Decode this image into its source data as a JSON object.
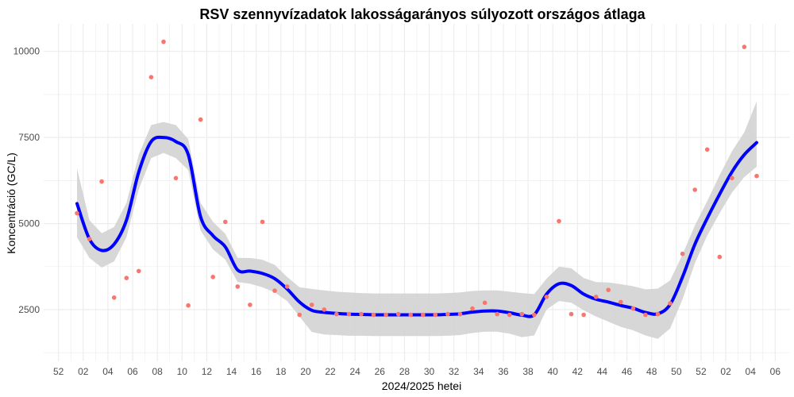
{
  "chart_data": {
    "type": "scatter",
    "title": "RSV szennyvízadatok lakosságarányos súlyozott országos átlaga",
    "xlabel": "2024/2025 hetei",
    "ylabel": "Koncentráció (GC/L)",
    "x_ticks": [
      "52",
      "02",
      "04",
      "06",
      "08",
      "10",
      "12",
      "14",
      "16",
      "18",
      "20",
      "22",
      "24",
      "26",
      "28",
      "30",
      "32",
      "34",
      "36",
      "38",
      "40",
      "42",
      "44",
      "46",
      "48",
      "50",
      "52",
      "02",
      "04",
      "06"
    ],
    "x_tick_positions": [
      -1,
      1,
      3,
      5,
      7,
      9,
      11,
      13,
      15,
      17,
      19,
      21,
      23,
      25,
      27,
      29,
      31,
      33,
      35,
      37,
      39,
      41,
      43,
      45,
      47,
      49,
      51,
      53,
      55,
      57
    ],
    "y_ticks": [
      2500,
      5000,
      7500,
      10000
    ],
    "y_tick_labels": [
      "2500",
      "5000",
      "7500",
      "10000"
    ],
    "xlim": [
      -2.2,
      58.2
    ],
    "ylim": [
      1000,
      10800
    ],
    "grid": true,
    "colors": {
      "points": "#f8766d",
      "smooth": "#0000ff",
      "band": "#d3d3d3",
      "grid": "#ebebeb"
    },
    "series": [
      {
        "role": "observed",
        "x": [
          0.5,
          1.5,
          2.5,
          3.5,
          4.5,
          5.5,
          6.5,
          7.5,
          8.5,
          9.5,
          10.5,
          11.5,
          12.5,
          13.5,
          14.5,
          15.5,
          16.5,
          17.5,
          18.5,
          19.5,
          20.5,
          21.5,
          22.5,
          23.5,
          24.5,
          25.5,
          26.5,
          27.5,
          28.5,
          29.5,
          30.5,
          31.5,
          32.5,
          33.5,
          34.5,
          35.5,
          36.5,
          37.5,
          38.5,
          39.5,
          40.5,
          41.5,
          42.5,
          43.5,
          44.5,
          45.5,
          46.5,
          47.5,
          48.5,
          49.5,
          50.5,
          51.5,
          52.5,
          53.5,
          54.5,
          55.5
        ],
        "y": [
          5300,
          4550,
          6220,
          2850,
          3420,
          3620,
          9250,
          10280,
          6320,
          2620,
          8020,
          3450,
          5050,
          3170,
          2640,
          5050,
          3050,
          3170,
          2350,
          2640,
          2500,
          2370,
          2370,
          2370,
          2350,
          2350,
          2370,
          2350,
          2350,
          2350,
          2370,
          2370,
          2530,
          2700,
          2370,
          2350,
          2370,
          2350,
          2870,
          5070,
          2370,
          2350,
          2870,
          3070,
          2720,
          2530,
          2350,
          2370,
          2680,
          4120,
          5980,
          7150,
          4030,
          6320,
          10130,
          6380
        ]
      },
      {
        "role": "smoothed",
        "x": [
          0.5,
          1.5,
          2.5,
          3.5,
          4.5,
          5.5,
          6.5,
          7.5,
          8.5,
          9.5,
          10.5,
          11.5,
          12.5,
          13.5,
          14.5,
          15.5,
          16.5,
          17.5,
          18.5,
          19.5,
          20.5,
          21.5,
          22.5,
          23.5,
          24.5,
          25.5,
          26.5,
          27.5,
          28.5,
          29.5,
          30.5,
          31.5,
          32.5,
          33.5,
          34.5,
          35.5,
          36.5,
          37.5,
          38.5,
          39.5,
          40.5,
          41.5,
          42.5,
          43.5,
          44.5,
          45.5,
          46.5,
          47.5,
          48.5,
          49.5,
          50.5,
          51.5,
          52.5,
          53.5,
          54.5,
          55.5
        ],
        "y": [
          5580,
          4550,
          4220,
          4400,
          5100,
          6500,
          7380,
          7500,
          7380,
          7000,
          5200,
          4650,
          4320,
          3650,
          3620,
          3550,
          3400,
          3100,
          2720,
          2480,
          2420,
          2390,
          2370,
          2360,
          2350,
          2350,
          2350,
          2350,
          2350,
          2350,
          2360,
          2380,
          2430,
          2460,
          2460,
          2410,
          2340,
          2350,
          2950,
          3250,
          3200,
          2950,
          2800,
          2720,
          2620,
          2540,
          2420,
          2380,
          2650,
          3450,
          4400,
          5150,
          5850,
          6500,
          7000,
          7350
        ]
      },
      {
        "role": "confidence_band",
        "x": [
          0.5,
          1.5,
          2.5,
          3.5,
          4.5,
          5.5,
          6.5,
          7.5,
          8.5,
          9.5,
          10.5,
          11.5,
          12.5,
          13.5,
          14.5,
          15.5,
          16.5,
          17.5,
          18.5,
          19.5,
          20.5,
          21.5,
          22.5,
          23.5,
          24.5,
          25.5,
          26.5,
          27.5,
          28.5,
          29.5,
          30.5,
          31.5,
          32.5,
          33.5,
          34.5,
          35.5,
          36.5,
          37.5,
          38.5,
          39.5,
          40.5,
          41.5,
          42.5,
          43.5,
          44.5,
          45.5,
          46.5,
          47.5,
          48.5,
          49.5,
          50.5,
          51.5,
          52.5,
          53.5,
          54.5,
          55.5
        ],
        "lower": [
          4600,
          4000,
          3720,
          3900,
          4600,
          6000,
          6900,
          7050,
          6900,
          6550,
          4800,
          4250,
          3950,
          3300,
          3250,
          3150,
          3000,
          2750,
          2300,
          1850,
          1780,
          1760,
          1740,
          1740,
          1730,
          1730,
          1730,
          1730,
          1730,
          1730,
          1740,
          1760,
          1820,
          1860,
          1860,
          1800,
          1700,
          1750,
          2500,
          2750,
          2700,
          2480,
          2300,
          2150,
          2000,
          1900,
          1750,
          1650,
          1950,
          2800,
          3850,
          4650,
          5300,
          5900,
          6350,
          6650
        ],
        "upper": [
          6600,
          5100,
          4720,
          4900,
          5600,
          7000,
          7860,
          7950,
          7860,
          7450,
          5600,
          5050,
          4700,
          4000,
          4000,
          3950,
          3800,
          3450,
          3150,
          3100,
          3060,
          3020,
          3000,
          2980,
          2970,
          2970,
          2970,
          2970,
          2970,
          2970,
          2980,
          3000,
          3040,
          3060,
          3060,
          3020,
          2980,
          2950,
          3400,
          3750,
          3700,
          3420,
          3300,
          3290,
          3240,
          3180,
          3090,
          3110,
          3350,
          4100,
          4950,
          5650,
          6400,
          7100,
          7650,
          8550
        ]
      }
    ]
  }
}
